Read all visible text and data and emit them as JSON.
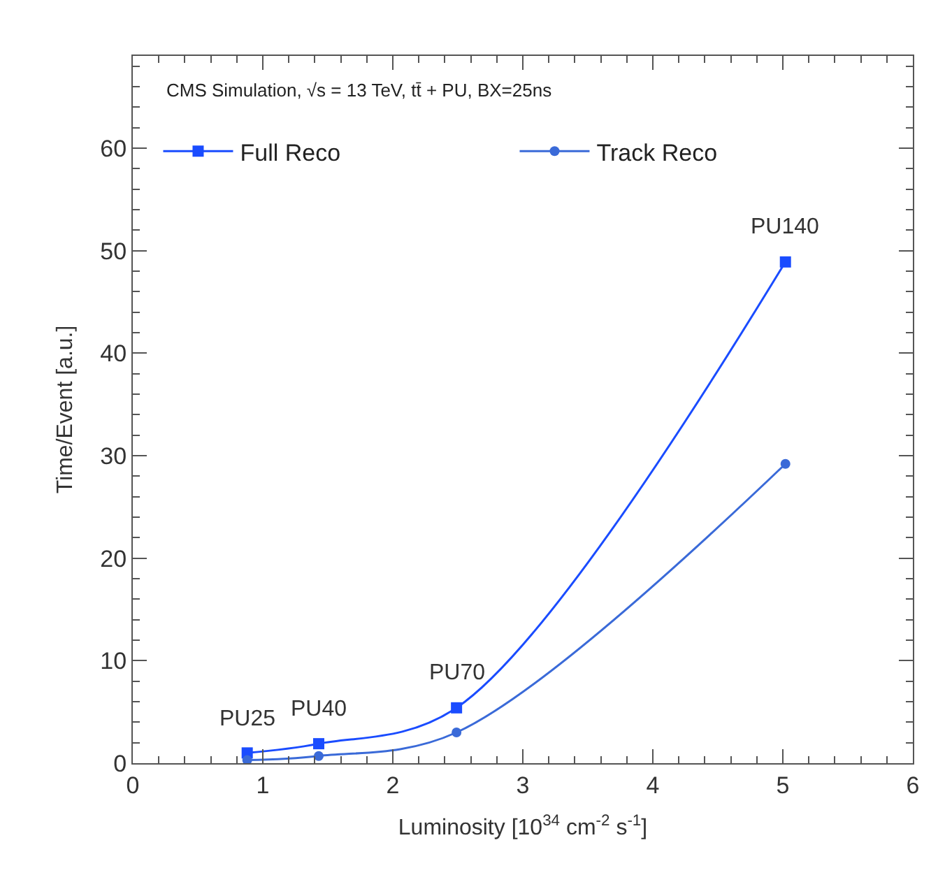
{
  "chart_data": {
    "type": "line",
    "xlabel": "Luminosity [10$^{34}$ cm$^{-2}$ s$^{-1}$]",
    "ylabel": "Time/Event [a.u.]",
    "xlim": [
      0,
      6
    ],
    "xticks": [
      0,
      1,
      2,
      3,
      4,
      5,
      6
    ],
    "ylim": [
      0,
      69
    ],
    "yticks": [
      0,
      10,
      20,
      30,
      40,
      50,
      60
    ],
    "x": [
      0.88,
      1.43,
      2.49,
      5.02
    ],
    "series": [
      {
        "name": "Full Reco",
        "color": "#1a4cff",
        "marker": "square",
        "values": [
          1.0,
          1.9,
          5.4,
          48.9
        ]
      },
      {
        "name": "Track Reco",
        "color": "#3a6ad8",
        "marker": "circle",
        "values": [
          0.3,
          0.7,
          3.0,
          29.2
        ]
      }
    ],
    "annotations": [
      "CMS Simulation, √s = 13 TeV, tt̄ + PU, BX=25ns",
      {
        "text": "PU25",
        "x": 0.88,
        "y": 1.0
      },
      {
        "text": "PU40",
        "x": 1.43,
        "y": 1.9
      },
      {
        "text": "PU70",
        "x": 2.49,
        "y": 5.4
      },
      {
        "text": "PU140",
        "x": 5.02,
        "y": 48.9
      }
    ],
    "legend": "top",
    "line_style": "solid"
  }
}
